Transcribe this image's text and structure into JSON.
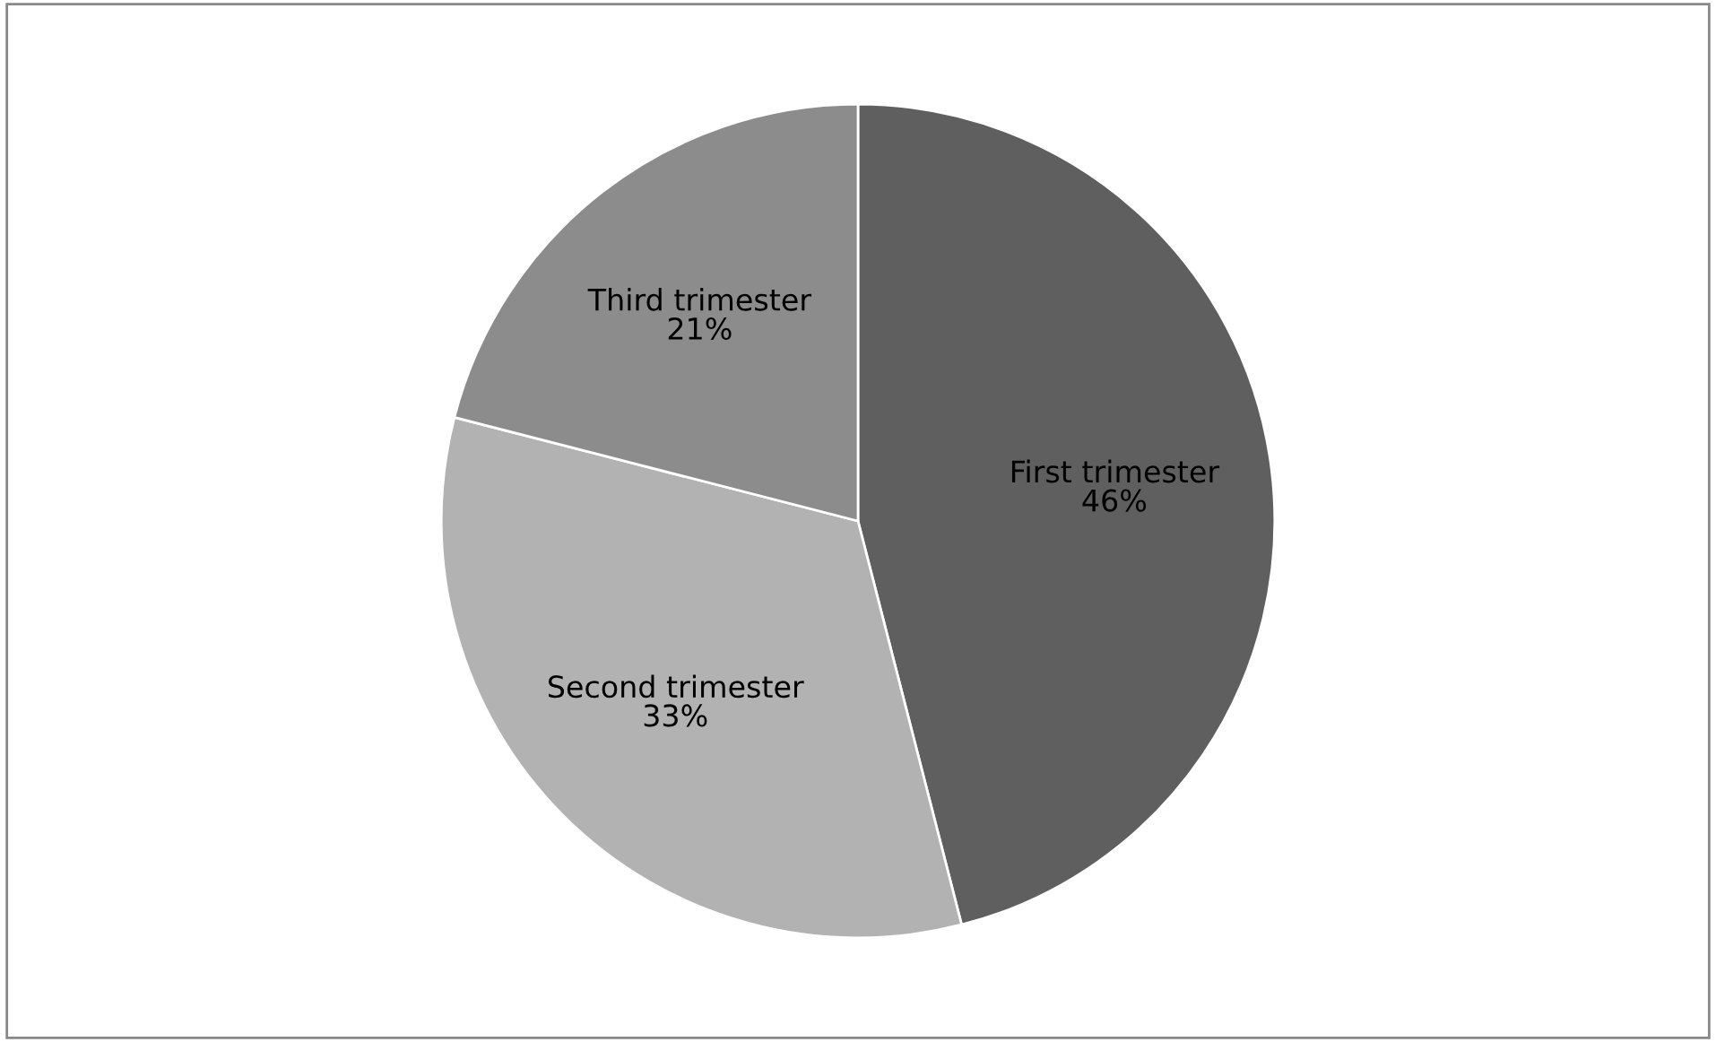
{
  "chart_data": {
    "type": "pie",
    "categories": [
      "First trimester",
      "Second trimester",
      "Third trimester"
    ],
    "values": [
      46,
      33,
      21
    ],
    "value_labels": [
      "46%",
      "33%",
      "21%"
    ],
    "colors": [
      "#5f5f5f",
      "#b2b2b2",
      "#8c8c8c"
    ]
  }
}
